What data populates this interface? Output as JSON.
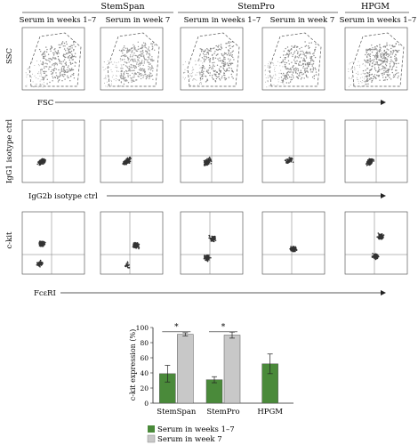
{
  "header": {
    "groups": [
      "StemSpan",
      "StemPro",
      "HPGM"
    ],
    "columns": [
      "Serum in weeks 1–7",
      "Serum in week 7",
      "Serum in weeks 1–7",
      "Serum in week 7",
      "Serum in weeks 1–7"
    ]
  },
  "rows": [
    {
      "ylabel": "SSC",
      "xlabel": "FSC"
    },
    {
      "ylabel": "IgG1 isotype ctrl",
      "xlabel": "IgG2b isotype ctrl"
    },
    {
      "ylabel": "c-kit",
      "xlabel": "FcεRI"
    }
  ],
  "colors": {
    "weeks_1_7": "#4a8a3a",
    "week_7": "#c8c8c8",
    "dots": "#333333",
    "gate": "#555555"
  },
  "chart_data": {
    "type": "bar",
    "categories": [
      "StemSpan",
      "StemPro",
      "HPGM"
    ],
    "series": [
      {
        "name": "Serum in weeks 1–7",
        "values": [
          39,
          31,
          52
        ],
        "errors": [
          11,
          4,
          13
        ]
      },
      {
        "name": "Serum in week 7",
        "values": [
          91,
          90,
          null
        ],
        "errors": [
          2,
          4,
          null
        ]
      }
    ],
    "ylabel": "c-kit expression (%)",
    "ylim": [
      0,
      100
    ],
    "yticks": [
      0,
      20,
      40,
      60,
      80,
      100
    ],
    "significance": [
      {
        "category": "StemSpan",
        "label": "*"
      },
      {
        "category": "StemPro",
        "label": "*"
      }
    ],
    "legend_placement": "bottom",
    "grid": false
  }
}
